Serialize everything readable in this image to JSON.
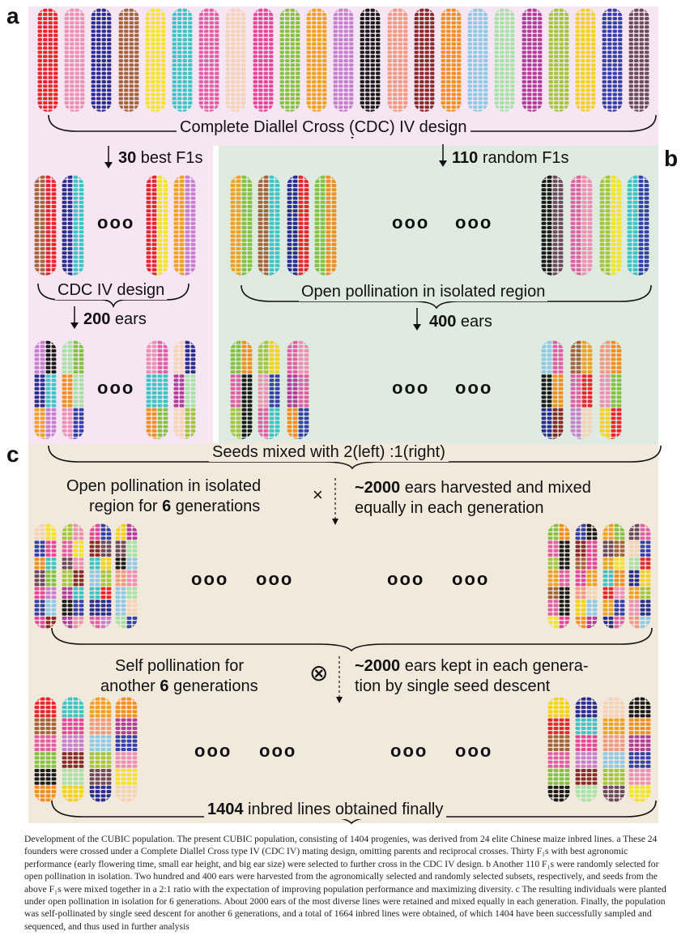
{
  "panel_letters": {
    "a": "a",
    "b": "b",
    "c": "c"
  },
  "labels": {
    "cdc_iv_title": "Complete Diallel Cross (CDC) IV design",
    "best_f1s": {
      "num": "30",
      "text": " best F1s"
    },
    "random_f1s": {
      "num": "110",
      "text": " random F1s"
    },
    "cdc_iv_design": "CDC IV design",
    "ears_200": {
      "num": "200",
      "text": "  ears"
    },
    "open_pollination_isolated": "Open pollination in isolated region",
    "ears_400": {
      "num": "400",
      "text": "  ears"
    },
    "seeds_mixed": "Seeds mixed with 2(left) :1(right)",
    "open_poll_line1": "Open pollination in isolated",
    "open_poll_line2_pre": "region for ",
    "open_poll_line2_num": "6",
    "open_poll_line2_post": " generations",
    "harvest_line1_num": "~2000",
    "harvest_line1_text": "  ears harvested and mixed",
    "harvest_line2": "equally in each generation",
    "self_poll_line1": "Self pollination for",
    "self_poll_line2_pre": "another ",
    "self_poll_line2_num": "6",
    "self_poll_line2_post": " generations",
    "kept_line1_num": "~2000",
    "kept_line1_text": "  ears kept in each genera-",
    "kept_line2": "tion by single seed descent",
    "final_num": "1404",
    "final_text": " inbred lines obtained finally",
    "cross_symbol": "×",
    "self_symbol": "⊗",
    "ellipsis": "ooo"
  },
  "caption": "Development of the CUBIC population. The present CUBIC population, consisting of 1404 progenies, was derived from 24 elite Chinese maize inbred lines. a These 24 founders were crossed under a Complete Diallel Cross type IV (CDC IV) mating design, omitting parents and reciprocal crosses. Thirty F₁s with best agronomic performance (early flowering time, small ear height, and big ear size) were selected to further cross in the CDC IV design. b Another 110 F₁s were randomly selected for open pollination in isolation. Two hundred and 400 ears were harvested from the agronomically selected and randomly selected subsets, respectively, and seeds from the above F₁s were mixed together in a 2:1 ratio with the expectation of improving population performance and maximizing diversity. c The resulting individuals were planted under open pollination in isolation for 6 generations. About 2000 ears of the most diverse lines were retained and mixed equally in each generation. Finally, the population was self-pollinated by single seed descent for another 6 generations, and a total of 1664 inbred lines were obtained, of which 1404 have been successfully sampled and sequenced, and thus used in further analysis",
  "colors": {
    "panel_pink": "#f6e6f3",
    "panel_green": "#dfeae0",
    "panel_tan": "#f2e9dd",
    "founders": [
      "#e8262b",
      "#ee8fb3",
      "#2a2f8f",
      "#a5643c",
      "#f4e326",
      "#3fc4c6",
      "#e35fa5",
      "#f6d2b6",
      "#e6479a",
      "#84c341",
      "#f2a01d",
      "#c77fd0",
      "#1b1b1b",
      "#f09a82",
      "#8a2b2b",
      "#f58e1d",
      "#8ecae6",
      "#a7e3a7",
      "#b23e9b",
      "#a2c73c",
      "#f5d21a",
      "#3540a8",
      "#6e4a5e"
    ]
  }
}
